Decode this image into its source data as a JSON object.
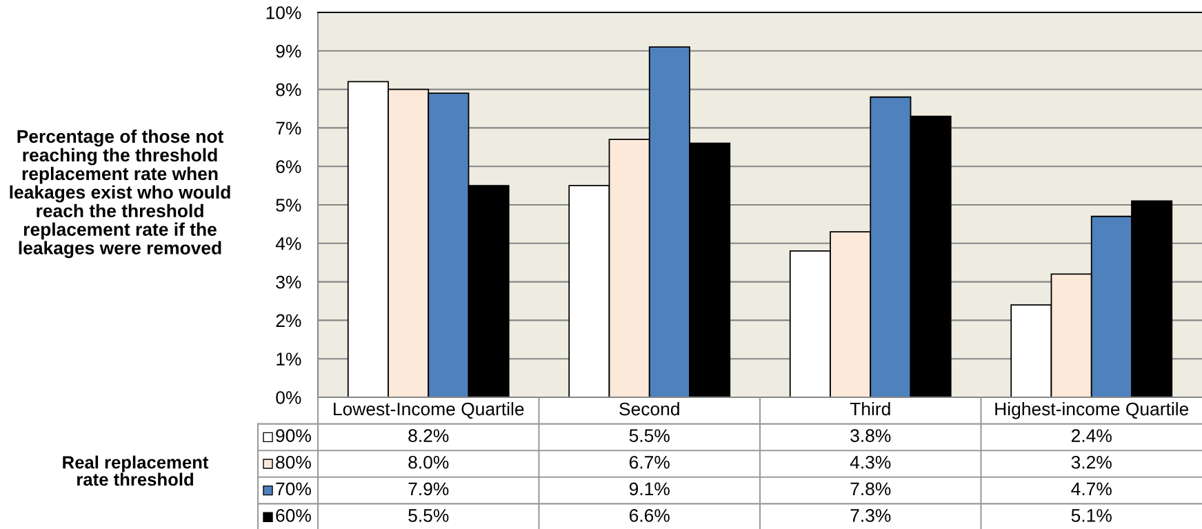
{
  "chart_data": {
    "type": "bar",
    "ylabel": "Percentage of those not\nreaching the threshold\nreplacement rate when\nleakages exist who would\nreach the threshold\nreplacement rate if the\nleakages were removed",
    "legend_title": "Real replacement\nrate threshold",
    "categories": [
      "Lowest-Income Quartile",
      "Second",
      "Third",
      "Highest-income Quartile"
    ],
    "series": [
      {
        "name": "90%",
        "color": "#ffffff",
        "values": [
          8.2,
          5.5,
          3.8,
          2.4
        ],
        "value_labels": [
          "8.2%",
          "5.5%",
          "3.8%",
          "2.4%"
        ]
      },
      {
        "name": "80%",
        "color": "#fde9d9",
        "values": [
          8.0,
          6.7,
          4.3,
          3.2
        ],
        "value_labels": [
          "8.0%",
          "6.7%",
          "4.3%",
          "3.2%"
        ]
      },
      {
        "name": "70%",
        "color": "#4f81bd",
        "values": [
          7.9,
          9.1,
          7.8,
          4.7
        ],
        "value_labels": [
          "7.9%",
          "9.1%",
          "7.8%",
          "4.7%"
        ]
      },
      {
        "name": "60%",
        "color": "#000000",
        "values": [
          5.5,
          6.6,
          7.3,
          5.1
        ],
        "value_labels": [
          "5.5%",
          "6.6%",
          "7.3%",
          "5.1%"
        ]
      }
    ],
    "ylim": [
      0,
      10
    ],
    "yticks": [
      {
        "value": 0,
        "label": "0%"
      },
      {
        "value": 1,
        "label": "1%"
      },
      {
        "value": 2,
        "label": "2%"
      },
      {
        "value": 3,
        "label": "3%"
      },
      {
        "value": 4,
        "label": "4%"
      },
      {
        "value": 5,
        "label": "5%"
      },
      {
        "value": 6,
        "label": "6%"
      },
      {
        "value": 7,
        "label": "7%"
      },
      {
        "value": 8,
        "label": "8%"
      },
      {
        "value": 9,
        "label": "9%"
      },
      {
        "value": 10,
        "label": "10%"
      }
    ],
    "grid": "y",
    "legend": "bottom left"
  }
}
